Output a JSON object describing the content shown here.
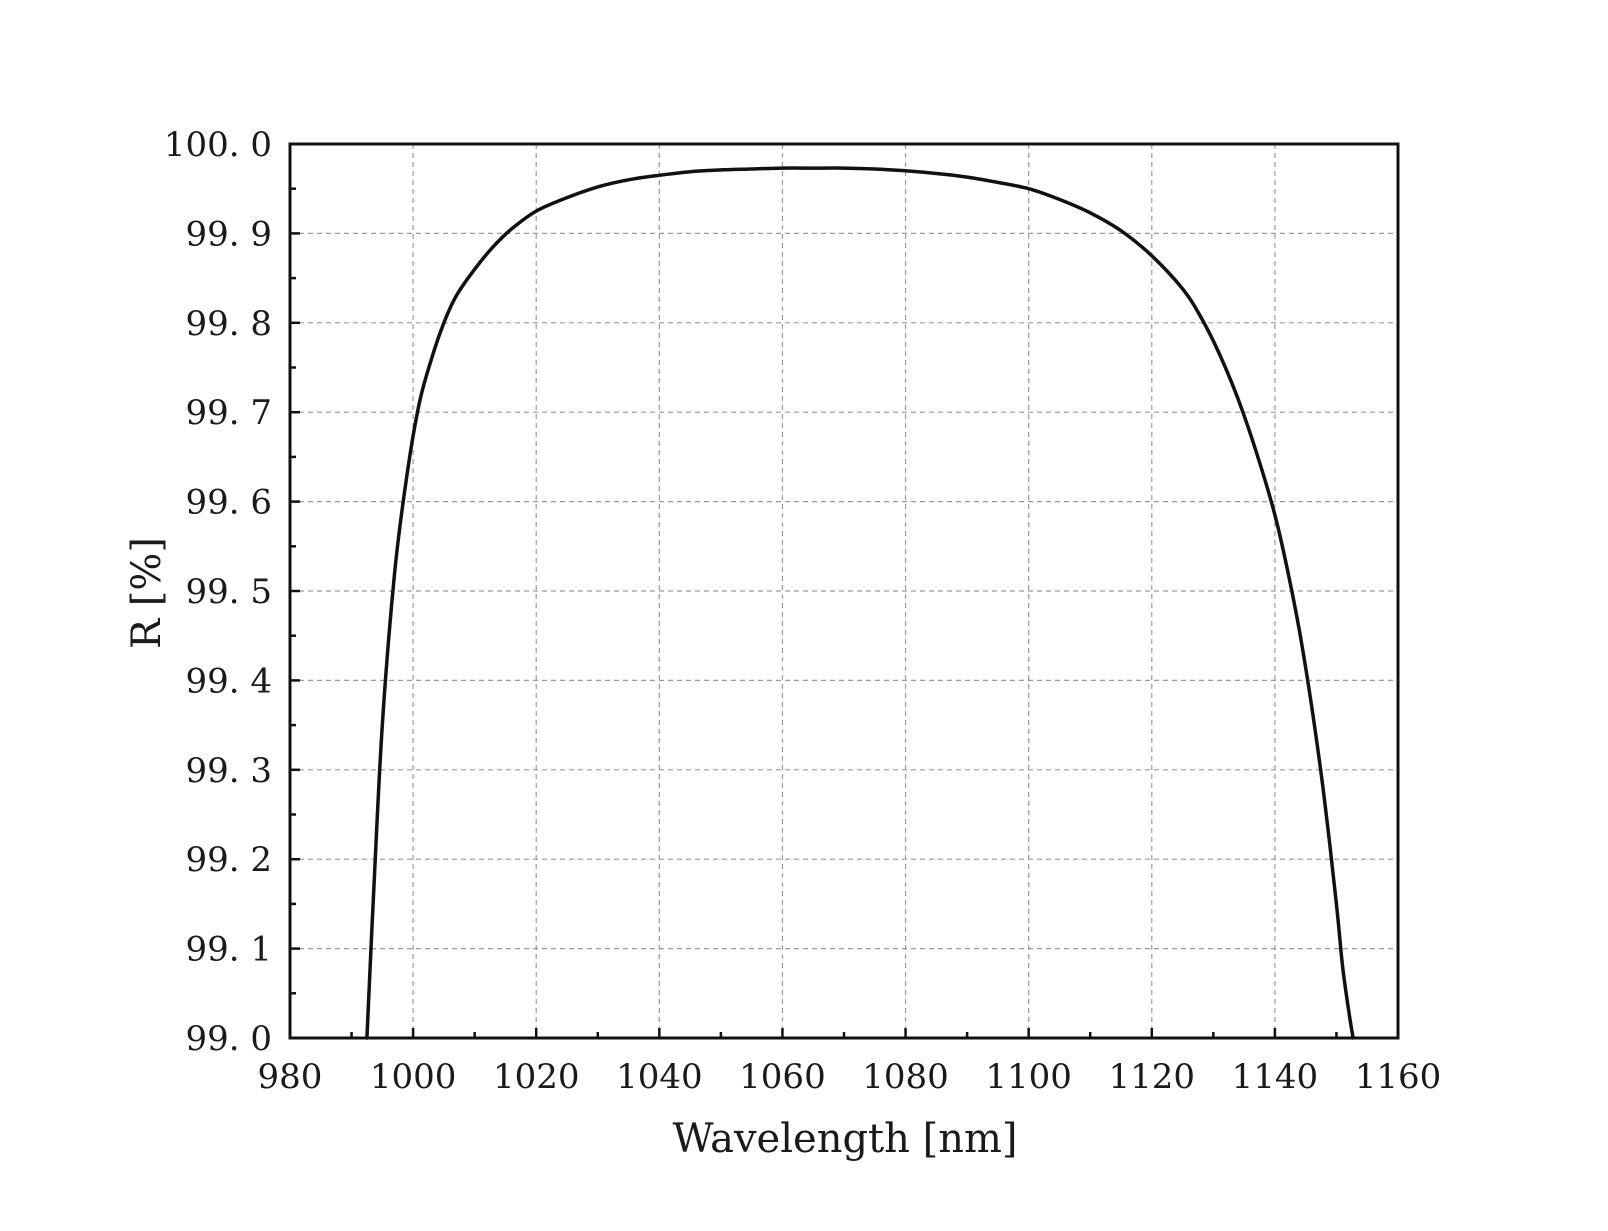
{
  "chart_data": {
    "type": "line",
    "xlabel": "Wavelength [nm]",
    "ylabel": "R [%]",
    "xlim": [
      980,
      1160
    ],
    "ylim": [
      99.0,
      100.0
    ],
    "x_ticks": [
      980,
      1000,
      1020,
      1040,
      1060,
      1080,
      1100,
      1120,
      1140,
      1160
    ],
    "x_tick_labels": [
      "980",
      "1000",
      "1020",
      "1040",
      "1060",
      "1080",
      "1100",
      "1120",
      "1140",
      "1160"
    ],
    "y_ticks": [
      99.0,
      99.1,
      99.2,
      99.3,
      99.4,
      99.5,
      99.6,
      99.7,
      99.8,
      99.9,
      100.0
    ],
    "y_tick_labels": [
      "99. 0",
      "99. 1",
      "99. 2",
      "99. 3",
      "99. 4",
      "99. 5",
      "99. 6",
      "99. 7",
      "99. 8",
      "99. 9",
      "100. 0"
    ],
    "grid": true,
    "legend": "none",
    "line_color": "#111111",
    "series": [
      {
        "x": [
          992.5,
          993.5,
          995,
          997,
          999,
          1001,
          1003,
          1005,
          1007,
          1010,
          1013,
          1016,
          1020,
          1025,
          1030,
          1035,
          1040,
          1045,
          1050,
          1055,
          1060,
          1065,
          1070,
          1075,
          1080,
          1085,
          1090,
          1095,
          1100,
          1105,
          1110,
          1115,
          1120,
          1125,
          1128,
          1131,
          1134,
          1137,
          1140,
          1142,
          1144,
          1146,
          1148,
          1150,
          1151,
          1152,
          1152.7
        ],
        "y": [
          99.0,
          99.15,
          99.35,
          99.52,
          99.63,
          99.71,
          99.76,
          99.8,
          99.83,
          99.86,
          99.885,
          99.905,
          99.925,
          99.94,
          99.952,
          99.96,
          99.965,
          99.969,
          99.971,
          99.972,
          99.973,
          99.973,
          99.973,
          99.972,
          99.97,
          99.967,
          99.963,
          99.957,
          99.95,
          99.938,
          99.923,
          99.903,
          99.875,
          99.838,
          99.806,
          99.765,
          99.715,
          99.655,
          99.585,
          99.525,
          99.455,
          99.37,
          99.27,
          99.15,
          99.08,
          99.03,
          99.0
        ]
      }
    ]
  }
}
